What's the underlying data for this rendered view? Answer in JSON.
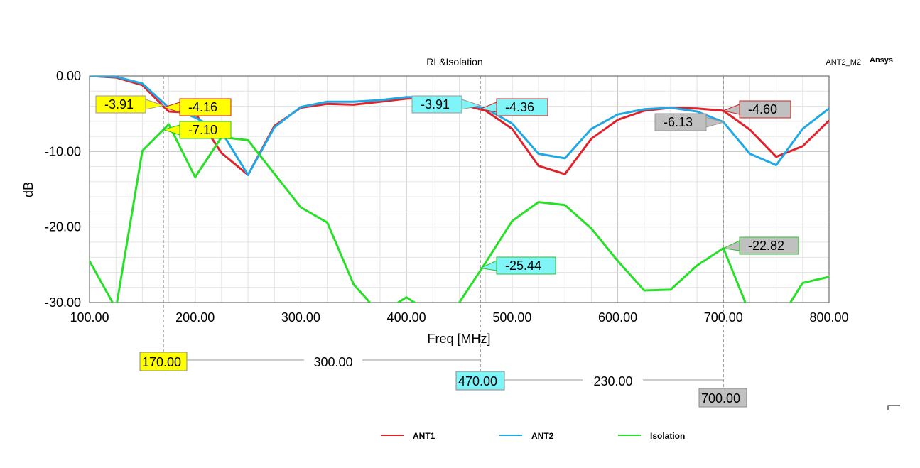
{
  "chart_data": {
    "type": "line",
    "title": "RL&Isolation",
    "plot_name": "ANT2_M2",
    "brand": "Ansys",
    "xlabel": "Freq [MHz]",
    "ylabel": "dB",
    "xlim": [
      100,
      800
    ],
    "ylim": [
      -30,
      0
    ],
    "x_ticks": [
      "100.00",
      "200.00",
      "300.00",
      "400.00",
      "500.00",
      "600.00",
      "700.00",
      "800.00"
    ],
    "y_ticks": [
      "0.00",
      "-10.00",
      "-20.00",
      "-30.00"
    ],
    "grid": true,
    "legend_position": "bottom",
    "colors": {
      "ANT1": "#e0232b",
      "ANT2": "#1fa8e6",
      "Isolation": "#28e028"
    },
    "series": [
      {
        "name": "ANT1",
        "x": [
          100,
          125,
          150,
          175,
          200,
          225,
          250,
          275,
          300,
          325,
          350,
          375,
          400,
          425,
          450,
          475,
          500,
          525,
          550,
          575,
          600,
          625,
          650,
          675,
          700,
          725,
          750,
          775,
          800
        ],
        "y": [
          0,
          -0.2,
          -1.2,
          -4.7,
          -4.9,
          -10.2,
          -13.1,
          -6.6,
          -4.2,
          -3.7,
          -3.8,
          -3.4,
          -3.0,
          -2.9,
          -3.7,
          -4.6,
          -7.0,
          -11.9,
          -13.0,
          -8.3,
          -5.8,
          -4.6,
          -4.2,
          -4.3,
          -4.6,
          -7.1,
          -10.7,
          -9.3,
          -5.9
        ]
      },
      {
        "name": "ANT2",
        "x": [
          100,
          125,
          150,
          175,
          200,
          225,
          250,
          275,
          300,
          325,
          350,
          375,
          400,
          425,
          450,
          475,
          500,
          525,
          550,
          575,
          600,
          625,
          650,
          675,
          700,
          725,
          750,
          775,
          800
        ],
        "y": [
          0,
          -0.1,
          -1.0,
          -4.2,
          -5.5,
          -7.4,
          -13.1,
          -6.8,
          -4.1,
          -3.4,
          -3.4,
          -3.2,
          -2.8,
          -2.8,
          -3.6,
          -4.3,
          -6.3,
          -10.3,
          -10.9,
          -7.0,
          -5.1,
          -4.4,
          -4.2,
          -4.7,
          -6.1,
          -10.3,
          -11.8,
          -7.0,
          -4.3
        ]
      },
      {
        "name": "Isolation",
        "x": [
          100,
          125,
          150,
          175,
          200,
          225,
          250,
          300,
          325,
          350,
          375,
          400,
          425,
          450,
          475,
          500,
          525,
          550,
          575,
          600,
          625,
          650,
          675,
          700,
          725,
          750,
          775,
          800
        ],
        "y": [
          -24.5,
          -30.8,
          -9.9,
          -6.4,
          -13.4,
          -8.1,
          -8.5,
          -17.4,
          -19.4,
          -27.6,
          -31.5,
          -29.3,
          -31.6,
          -30.0,
          -24.7,
          -19.2,
          -16.7,
          -17.1,
          -20.2,
          -24.5,
          -28.4,
          -28.3,
          -25.1,
          -22.8,
          -31.5,
          -33.0,
          -27.4,
          -26.6
        ]
      }
    ],
    "markers": [
      {
        "x": 170,
        "x_label": "170.00",
        "color": "#ffff00",
        "values": [
          {
            "series": "ANT2",
            "label": "-3.91",
            "y": -3.91
          },
          {
            "series": "ANT1",
            "label": "-4.16",
            "y": -4.16
          },
          {
            "series": "Isolation",
            "label": "-7.10",
            "y": -7.1
          }
        ]
      },
      {
        "x": 470,
        "x_label": "470.00",
        "color": "#7ff5f8",
        "values": [
          {
            "series": "ANT2",
            "label": "-3.91",
            "y": -3.91
          },
          {
            "series": "ANT1",
            "label": "-4.36",
            "y": -4.36
          },
          {
            "series": "Isolation",
            "label": "-25.44",
            "y": -25.44
          }
        ]
      },
      {
        "x": 700,
        "x_label": "700.00",
        "color": "#c0c0c0",
        "values": [
          {
            "series": "ANT1",
            "label": "-4.60",
            "y": -4.6
          },
          {
            "series": "ANT2",
            "label": "-6.13",
            "y": -6.13
          },
          {
            "series": "Isolation",
            "label": "-22.82",
            "y": -22.82
          }
        ]
      }
    ],
    "deltas": [
      {
        "label": "300.00"
      },
      {
        "label": "230.00"
      }
    ]
  }
}
